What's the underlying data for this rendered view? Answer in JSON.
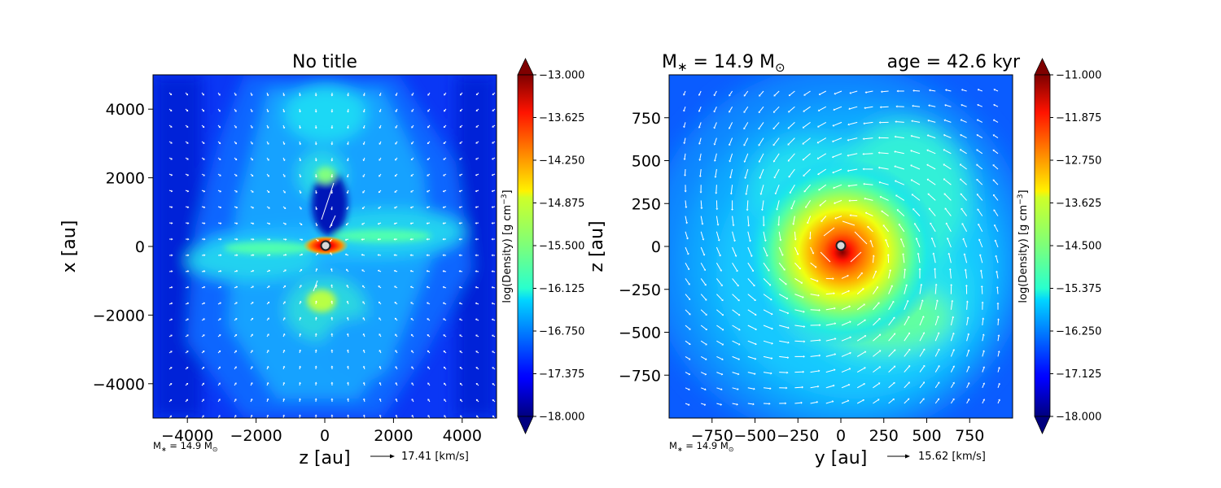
{
  "chart_data": [
    {
      "type": "heatmap",
      "title": "No title",
      "xlabel": "z [au]",
      "ylabel": "x [au]",
      "xlim": [
        -5000,
        5000
      ],
      "ylim": [
        -5000,
        5000
      ],
      "xticks": [
        {
          "value": -4000,
          "label": "−4000"
        },
        {
          "value": -2000,
          "label": "−2000"
        },
        {
          "value": 0,
          "label": "0"
        },
        {
          "value": 2000,
          "label": "2000"
        },
        {
          "value": 4000,
          "label": "4000"
        }
      ],
      "yticks": [
        {
          "value": 4000,
          "label": "4000"
        },
        {
          "value": 2000,
          "label": "2000"
        },
        {
          "value": 0,
          "label": "0"
        },
        {
          "value": -2000,
          "label": "−2000"
        },
        {
          "value": -4000,
          "label": "−4000"
        }
      ],
      "colorbar": {
        "label": "log(Density) [g cm",
        "label_sup": "−3",
        "label_close": "]",
        "min": -18.0,
        "max": -13.0,
        "extend": "both",
        "ticks": [
          {
            "value": -13.0,
            "label": "−13.000"
          },
          {
            "value": -13.625,
            "label": "−13.625"
          },
          {
            "value": -14.25,
            "label": "−14.250"
          },
          {
            "value": -14.875,
            "label": "−14.875"
          },
          {
            "value": -15.5,
            "label": "−15.500"
          },
          {
            "value": -16.125,
            "label": "−16.125"
          },
          {
            "value": -16.75,
            "label": "−16.750"
          },
          {
            "value": -17.375,
            "label": "−17.375"
          },
          {
            "value": -18.0,
            "label": "−18.000"
          }
        ]
      },
      "annotation": {
        "prefix": "M",
        "sub": "∗",
        "mid": " = 14.9 M",
        "sub2": "⊙"
      },
      "quiver_key": {
        "value": 17.41,
        "label": "17.41 [km/s]"
      },
      "colormap": "jet",
      "sink_position": [
        0,
        0
      ]
    },
    {
      "type": "heatmap",
      "title_left": {
        "prefix": "M",
        "sub": "∗",
        "mid": " = 14.9 M",
        "sub2": "⊙"
      },
      "title_right": "age = 42.6 kyr",
      "xlabel": "y [au]",
      "ylabel": "z [au]",
      "xlim": [
        -1000,
        1000
      ],
      "ylim": [
        -1000,
        1000
      ],
      "xticks": [
        {
          "value": -750,
          "label": "−750"
        },
        {
          "value": -500,
          "label": "−500"
        },
        {
          "value": -250,
          "label": "−250"
        },
        {
          "value": 0,
          "label": "0"
        },
        {
          "value": 250,
          "label": "250"
        },
        {
          "value": 500,
          "label": "500"
        },
        {
          "value": 750,
          "label": "750"
        }
      ],
      "yticks": [
        {
          "value": 750,
          "label": "750"
        },
        {
          "value": 500,
          "label": "500"
        },
        {
          "value": 250,
          "label": "250"
        },
        {
          "value": 0,
          "label": "0"
        },
        {
          "value": -250,
          "label": "−250"
        },
        {
          "value": -500,
          "label": "−500"
        },
        {
          "value": -750,
          "label": "−750"
        }
      ],
      "colorbar": {
        "label": "log(Density) [g cm",
        "label_sup": "−3",
        "label_close": "]",
        "min": -18.0,
        "max": -11.0,
        "extend": "both",
        "ticks": [
          {
            "value": -11.0,
            "label": "−11.000"
          },
          {
            "value": -11.875,
            "label": "−11.875"
          },
          {
            "value": -12.75,
            "label": "−12.750"
          },
          {
            "value": -13.625,
            "label": "−13.625"
          },
          {
            "value": -14.5,
            "label": "−14.500"
          },
          {
            "value": -15.375,
            "label": "−15.375"
          },
          {
            "value": -16.25,
            "label": "−16.250"
          },
          {
            "value": -17.125,
            "label": "−17.125"
          },
          {
            "value": -18.0,
            "label": "−18.000"
          }
        ]
      },
      "annotation": {
        "prefix": "M",
        "sub": "∗",
        "mid": " = 14.9 M",
        "sub2": "⊙"
      },
      "quiver_key": {
        "value": 15.62,
        "label": "15.62 [km/s]"
      },
      "colormap": "jet",
      "sink_position": [
        -20,
        0
      ]
    }
  ]
}
